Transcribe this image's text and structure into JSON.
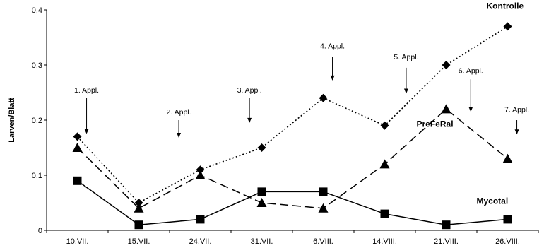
{
  "chart_data": {
    "type": "line",
    "title": "",
    "xlabel": "",
    "ylabel": "Larven/Blatt",
    "categories": [
      "10.VII.",
      "15.VII.",
      "24.VII.",
      "31.VII.",
      "6.VIII.",
      "14.VIII.",
      "21.VIII.",
      "26.VIII."
    ],
    "ylim": [
      0,
      0.4
    ],
    "yticks": [
      0,
      0.1,
      0.2,
      0.3,
      0.4
    ],
    "ytick_labels": [
      "0",
      "0,1",
      "0,2",
      "0,3",
      "0,4"
    ],
    "grid": false,
    "legend": "none",
    "series": [
      {
        "name": "Kontrolle",
        "values": [
          0.17,
          0.05,
          0.11,
          0.15,
          0.24,
          0.19,
          0.3,
          0.37
        ],
        "marker": "diamond",
        "line": "dotted",
        "label_near": 7
      },
      {
        "name": "PreFeRal",
        "values": [
          0.15,
          0.04,
          0.1,
          0.05,
          0.04,
          0.12,
          0.22,
          0.13
        ],
        "marker": "triangle",
        "line": "dashed",
        "label_near": 6
      },
      {
        "name": "Mycotal",
        "values": [
          0.09,
          0.01,
          0.02,
          0.07,
          0.07,
          0.03,
          0.01,
          0.02
        ],
        "marker": "square",
        "line": "solid",
        "label_near": 7
      }
    ],
    "annotations": [
      {
        "text": "1. Appl.",
        "x": 0.15,
        "y_text": 0.25,
        "y_arrow_start": 0.24,
        "y_arrow_end": 0.175
      },
      {
        "text": "2. Appl.",
        "x": 1.65,
        "y_text": 0.21,
        "y_arrow_start": 0.2,
        "y_arrow_end": 0.168
      },
      {
        "text": "3. Appl.",
        "x": 2.8,
        "y_text": 0.25,
        "y_arrow_start": 0.24,
        "y_arrow_end": 0.195
      },
      {
        "text": "4. Appl.",
        "x": 4.15,
        "y_text": 0.33,
        "y_arrow_start": 0.315,
        "y_arrow_end": 0.272
      },
      {
        "text": "5. Appl.",
        "x": 5.35,
        "y_text": 0.31,
        "y_arrow_start": 0.295,
        "y_arrow_end": 0.248
      },
      {
        "text": "6. Appl.",
        "x": 6.4,
        "y_text": 0.285,
        "y_arrow_start": 0.274,
        "y_arrow_end": 0.215
      },
      {
        "text": "7. Appl.",
        "x": 7.15,
        "y_text": 0.215,
        "y_arrow_start": 0.2,
        "y_arrow_end": 0.174
      }
    ]
  }
}
